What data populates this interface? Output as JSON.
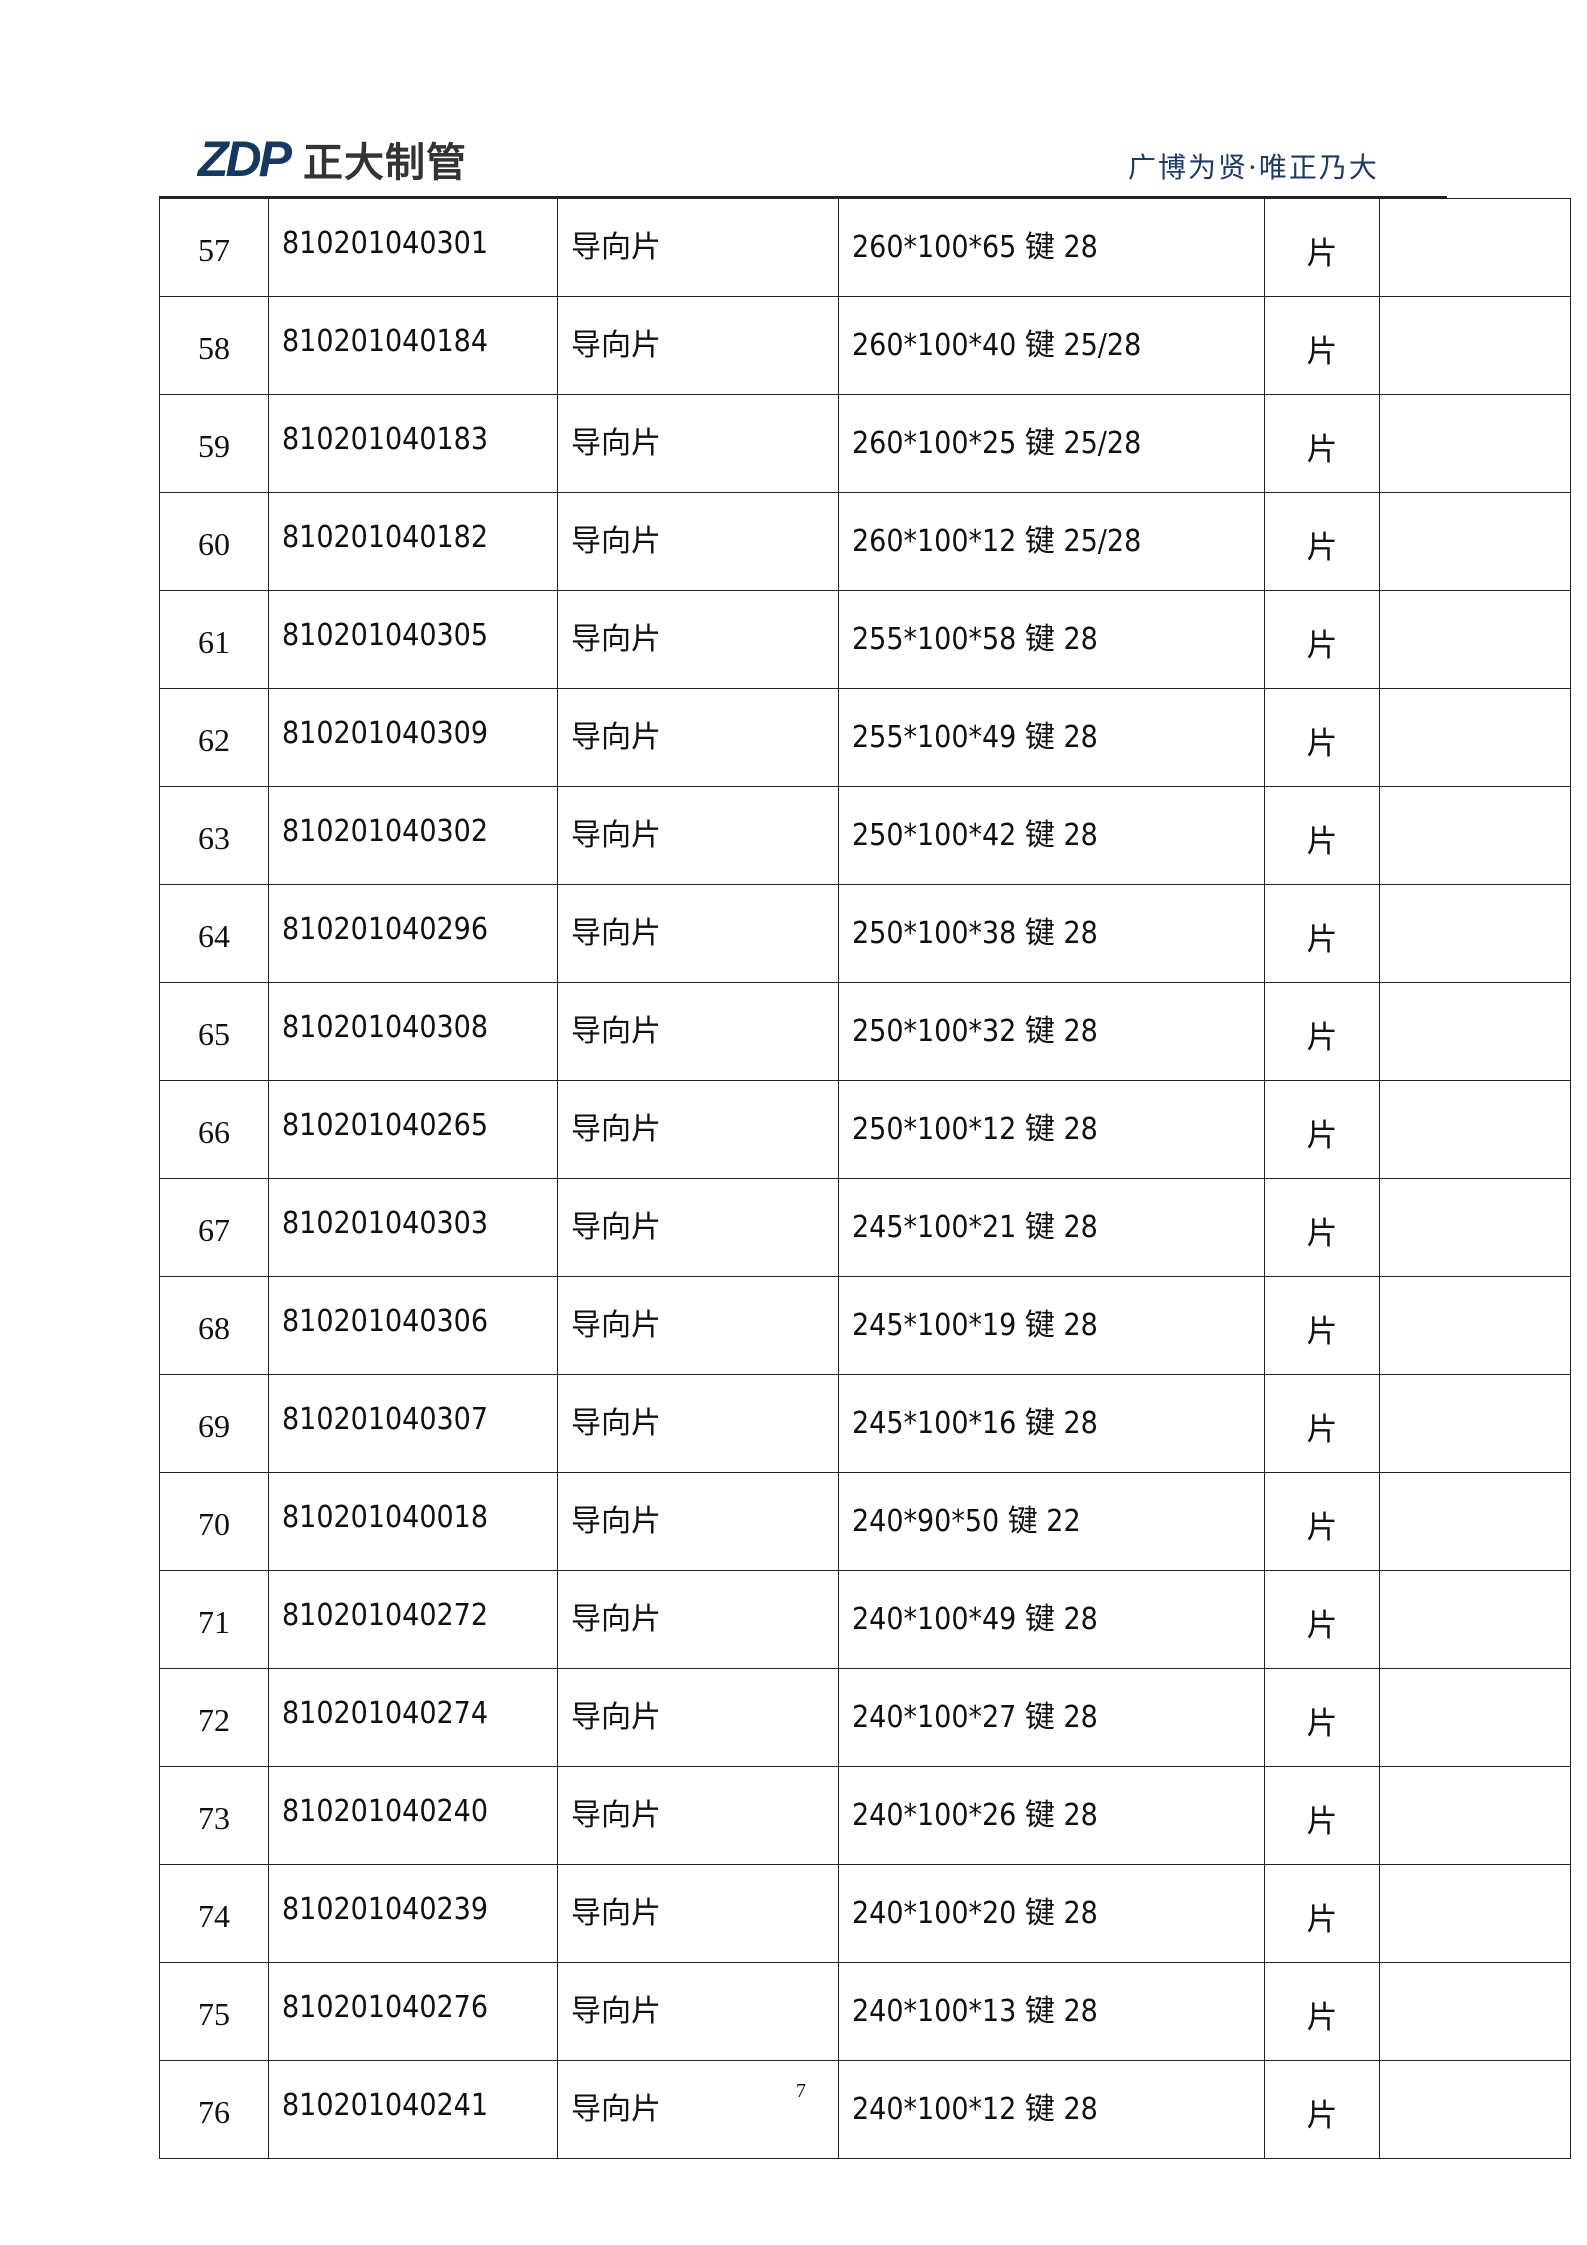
{
  "header": {
    "logo_mark": "ZDP",
    "logo_text": "正大制管",
    "slogan": "广博为贤·唯正乃大"
  },
  "rows": [
    {
      "no": "57",
      "code": "810201040301",
      "name": "导向片",
      "spec": "260*100*65 键 28",
      "unit": "片",
      "remark": ""
    },
    {
      "no": "58",
      "code": "810201040184",
      "name": "导向片",
      "spec": "260*100*40 键 25/28",
      "unit": "片",
      "remark": ""
    },
    {
      "no": "59",
      "code": "810201040183",
      "name": "导向片",
      "spec": "260*100*25 键 25/28",
      "unit": "片",
      "remark": ""
    },
    {
      "no": "60",
      "code": "810201040182",
      "name": "导向片",
      "spec": "260*100*12 键 25/28",
      "unit": "片",
      "remark": ""
    },
    {
      "no": "61",
      "code": "810201040305",
      "name": "导向片",
      "spec": "255*100*58 键 28",
      "unit": "片",
      "remark": ""
    },
    {
      "no": "62",
      "code": "810201040309",
      "name": "导向片",
      "spec": "255*100*49 键 28",
      "unit": "片",
      "remark": ""
    },
    {
      "no": "63",
      "code": "810201040302",
      "name": "导向片",
      "spec": "250*100*42 键 28",
      "unit": "片",
      "remark": ""
    },
    {
      "no": "64",
      "code": "810201040296",
      "name": "导向片",
      "spec": "250*100*38 键 28",
      "unit": "片",
      "remark": ""
    },
    {
      "no": "65",
      "code": "810201040308",
      "name": "导向片",
      "spec": "250*100*32 键 28",
      "unit": "片",
      "remark": ""
    },
    {
      "no": "66",
      "code": "810201040265",
      "name": "导向片",
      "spec": "250*100*12 键 28",
      "unit": "片",
      "remark": ""
    },
    {
      "no": "67",
      "code": "810201040303",
      "name": "导向片",
      "spec": "245*100*21 键 28",
      "unit": "片",
      "remark": ""
    },
    {
      "no": "68",
      "code": "810201040306",
      "name": "导向片",
      "spec": "245*100*19 键 28",
      "unit": "片",
      "remark": ""
    },
    {
      "no": "69",
      "code": "810201040307",
      "name": "导向片",
      "spec": "245*100*16 键 28",
      "unit": "片",
      "remark": ""
    },
    {
      "no": "70",
      "code": "810201040018",
      "name": "导向片",
      "spec": "240*90*50 键 22",
      "unit": "片",
      "remark": ""
    },
    {
      "no": "71",
      "code": "810201040272",
      "name": "导向片",
      "spec": "240*100*49 键 28",
      "unit": "片",
      "remark": ""
    },
    {
      "no": "72",
      "code": "810201040274",
      "name": "导向片",
      "spec": "240*100*27 键 28",
      "unit": "片",
      "remark": ""
    },
    {
      "no": "73",
      "code": "810201040240",
      "name": "导向片",
      "spec": "240*100*26 键 28",
      "unit": "片",
      "remark": ""
    },
    {
      "no": "74",
      "code": "810201040239",
      "name": "导向片",
      "spec": "240*100*20 键 28",
      "unit": "片",
      "remark": ""
    },
    {
      "no": "75",
      "code": "810201040276",
      "name": "导向片",
      "spec": "240*100*13 键 28",
      "unit": "片",
      "remark": ""
    },
    {
      "no": "76",
      "code": "810201040241",
      "name": "导向片",
      "spec": "240*100*12 键 28",
      "unit": "片",
      "remark": ""
    }
  ],
  "footer": {
    "page_number": "7"
  }
}
